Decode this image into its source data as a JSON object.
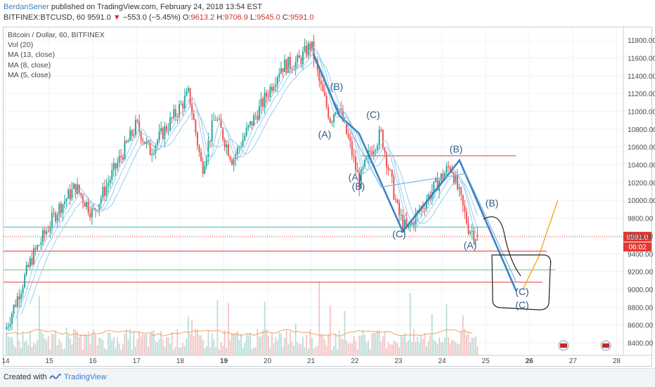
{
  "header": {
    "author": "BerdanSener",
    "published": "published on TradingView.com, February 24, 2018 13:54 EST",
    "symbol_line": "BITFINEX:BTCUSD, 60",
    "last_price": "9591.0",
    "change": "−553.0 (−5.45%)",
    "ohlc_o_label": "O:",
    "ohlc_o": "9613.2",
    "ohlc_h_label": "H:",
    "ohlc_h": "9706.9",
    "ohlc_l_label": "L:",
    "ohlc_l": "9545.0",
    "ohlc_c_label": "C:",
    "ohlc_c": "9591.0"
  },
  "legend": {
    "title": "Bitcoin / Dollar, 60, BITFINEX",
    "vol": "Vol (20)",
    "ma13": "MA (13, close)",
    "ma8": "MA (8, close)",
    "ma5": "MA (5, close)"
  },
  "footer": {
    "created_with": "Created with",
    "brand": "TradingView"
  },
  "colors": {
    "up": "#26a69a",
    "down": "#ef5350",
    "ma": "#8ec8ea",
    "wave": "#3b82c4",
    "level_red": "#e53935",
    "level_green": "#66bb6a",
    "level_teal": "#4db6ac",
    "projection": "#f5a623",
    "price_tag": "#e53935"
  },
  "chart_data": {
    "type": "candlestick",
    "x_ticks": [
      "14",
      "15",
      "16",
      "17",
      "18",
      "19",
      "20",
      "21",
      "22",
      "23",
      "24",
      "25",
      "26",
      "27",
      "28"
    ],
    "y_ticks": [
      8400,
      8600,
      8800,
      9000,
      9200,
      9400,
      9600,
      9800,
      10000,
      10200,
      10400,
      10600,
      10800,
      11000,
      11200,
      11400,
      11600,
      11800
    ],
    "ylim": [
      8300,
      11950
    ],
    "current_price_label": "9591.0",
    "countdown_label": "06:02",
    "wave_labels": [
      "(A)",
      "(B)",
      "(C)",
      "(A)",
      "(B)",
      "(C)",
      "(B)",
      "(A)",
      "(B)",
      "(C)",
      "(C)"
    ],
    "close_path_anchors": [
      {
        "day": 14.0,
        "price": 8550
      },
      {
        "day": 14.6,
        "price": 9350
      },
      {
        "day": 15.2,
        "price": 9900
      },
      {
        "day": 15.6,
        "price": 10150
      },
      {
        "day": 16.0,
        "price": 9850
      },
      {
        "day": 16.5,
        "price": 10350
      },
      {
        "day": 17.0,
        "price": 10850
      },
      {
        "day": 17.3,
        "price": 10550
      },
      {
        "day": 17.8,
        "price": 10900
      },
      {
        "day": 18.2,
        "price": 11200
      },
      {
        "day": 18.5,
        "price": 10350
      },
      {
        "day": 18.8,
        "price": 10950
      },
      {
        "day": 19.2,
        "price": 10450
      },
      {
        "day": 19.5,
        "price": 10750
      },
      {
        "day": 19.9,
        "price": 11100
      },
      {
        "day": 20.3,
        "price": 11500
      },
      {
        "day": 20.7,
        "price": 11550
      },
      {
        "day": 21.0,
        "price": 11750
      },
      {
        "day": 21.2,
        "price": 11300
      },
      {
        "day": 21.45,
        "price": 10900
      },
      {
        "day": 21.6,
        "price": 11100
      },
      {
        "day": 21.9,
        "price": 10600
      },
      {
        "day": 22.1,
        "price": 10200
      },
      {
        "day": 22.35,
        "price": 10550
      },
      {
        "day": 22.6,
        "price": 10750
      },
      {
        "day": 22.8,
        "price": 10300
      },
      {
        "day": 23.0,
        "price": 9850
      },
      {
        "day": 23.2,
        "price": 9650
      },
      {
        "day": 23.5,
        "price": 9900
      },
      {
        "day": 23.9,
        "price": 10200
      },
      {
        "day": 24.2,
        "price": 10400
      },
      {
        "day": 24.4,
        "price": 10050
      },
      {
        "day": 24.6,
        "price": 9700
      },
      {
        "day": 24.8,
        "price": 9591
      }
    ],
    "levels": [
      {
        "name": "resistance-red",
        "price": 10500,
        "color": "#e53935",
        "from": 22.15,
        "to": 25.7
      },
      {
        "name": "support-teal",
        "price": 9700,
        "color": "#4db6ac",
        "from": 13.95,
        "to": 25.1
      },
      {
        "name": "support-red-1",
        "price": 9430,
        "color": "#e53935",
        "from": 13.95,
        "to": 26.4
      },
      {
        "name": "support-green",
        "price": 9220,
        "color": "#66bb6a",
        "from": 13.95,
        "to": 26.6
      },
      {
        "name": "support-red-2",
        "price": 9080,
        "color": "#e53935",
        "from": 13.95,
        "to": 26.3
      }
    ],
    "wave_path": [
      {
        "day": 21.05,
        "price": 11650
      },
      {
        "day": 21.65,
        "price": 10950
      },
      {
        "day": 22.1,
        "price": 10750
      },
      {
        "day": 23.1,
        "price": 9650
      },
      {
        "day": 24.4,
        "price": 10450
      },
      {
        "day": 25.7,
        "price": 8980
      }
    ],
    "secondary_path": [
      {
        "day": 21.55,
        "price": 11100
      },
      {
        "day": 22.6,
        "price": 10150
      },
      {
        "day": 24.55,
        "price": 10300
      },
      {
        "day": 25.7,
        "price": 9080
      }
    ],
    "projection_path": [
      {
        "day": 25.85,
        "price": 9000
      },
      {
        "day": 26.2,
        "price": 9350
      },
      {
        "day": 26.65,
        "price": 10000
      }
    ],
    "volume_label": "Vol (20)"
  }
}
